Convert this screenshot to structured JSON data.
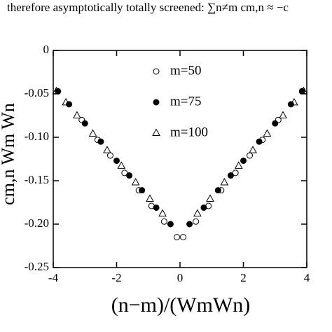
{
  "chart_data": {
    "type": "scatter",
    "annotation": "therefore asymptotically totally screened: ∑n≠m cm,n ≈ −c",
    "xlabel": "(n−m)/(WmWn)",
    "ylabel": "cm,n Wm Wn",
    "xlim": [
      -4,
      4
    ],
    "ylim": [
      -0.25,
      0
    ],
    "xticks": [
      -4,
      -2,
      0,
      2,
      4
    ],
    "yticks": [
      0,
      -0.05,
      {
        "value": -0.1,
        "label": "-0.10"
      },
      -0.15,
      {
        "value": -0.2,
        "label": "-0.20"
      },
      -0.25
    ],
    "legend": "upper center",
    "series": [
      {
        "name": "m=50",
        "marker": "open-circle",
        "color": "#000000",
        "x": [
          -3.1,
          -2.6,
          -2.2,
          -1.75,
          -1.3,
          -0.9,
          -0.5,
          -0.1,
          0.1,
          0.5,
          0.9,
          1.3,
          1.75,
          2.2,
          2.6,
          3.1
        ],
        "values": [
          -0.08,
          -0.103,
          -0.121,
          -0.141,
          -0.161,
          -0.179,
          -0.197,
          -0.215,
          -0.215,
          -0.197,
          -0.179,
          -0.161,
          -0.141,
          -0.121,
          -0.103,
          -0.08
        ]
      },
      {
        "name": "m=75",
        "marker": "filled-circle",
        "color": "#000000",
        "x": [
          -3.85,
          -3.5,
          -3.0,
          -2.5,
          -2.0,
          -1.6,
          -1.2,
          -0.75,
          -0.3,
          0.3,
          0.75,
          1.2,
          1.6,
          2.0,
          2.5,
          3.0,
          3.5,
          3.85
        ],
        "values": [
          -0.047,
          -0.062,
          -0.084,
          -0.105,
          -0.127,
          -0.144,
          -0.161,
          -0.181,
          -0.2,
          -0.2,
          -0.181,
          -0.161,
          -0.144,
          -0.127,
          -0.105,
          -0.084,
          -0.062,
          -0.047
        ]
      },
      {
        "name": "m=100",
        "marker": "open-triangle",
        "color": "#000000",
        "x": [
          -3.9,
          -3.6,
          -3.25,
          -2.75,
          -2.3,
          -1.85,
          -1.4,
          -0.95,
          -0.55,
          0.55,
          0.95,
          1.4,
          1.85,
          2.3,
          2.75,
          3.25,
          3.6,
          3.9
        ],
        "values": [
          -0.047,
          -0.06,
          -0.075,
          -0.096,
          -0.115,
          -0.133,
          -0.152,
          -0.171,
          -0.188,
          -0.188,
          -0.171,
          -0.152,
          -0.133,
          -0.115,
          -0.096,
          -0.075,
          -0.06,
          -0.047
        ]
      }
    ]
  }
}
